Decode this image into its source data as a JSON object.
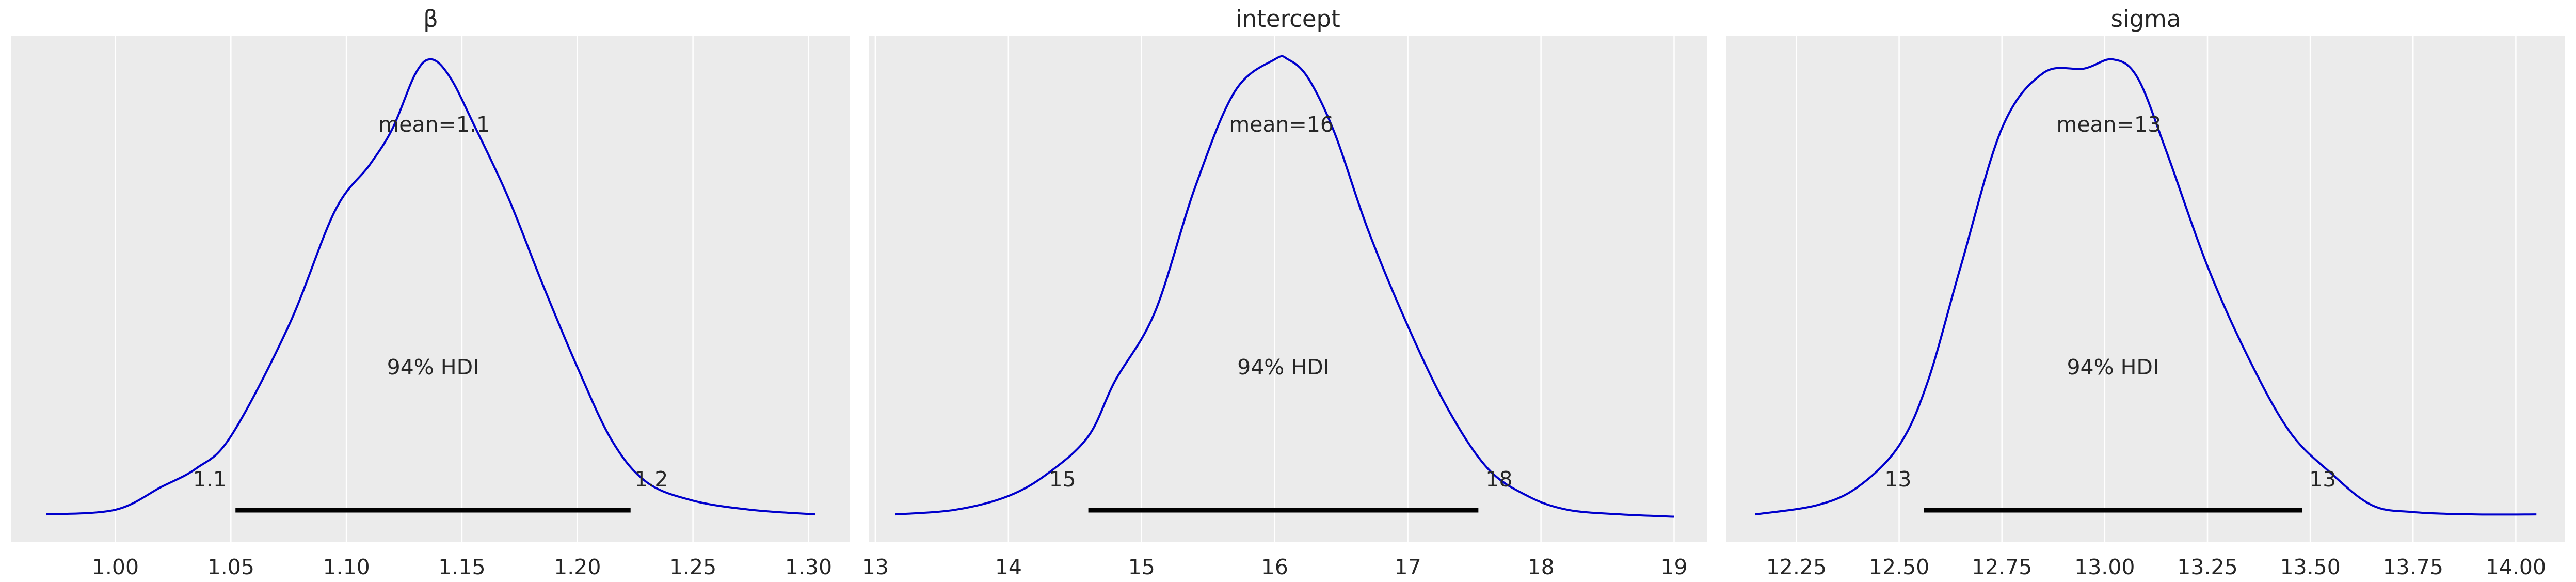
{
  "chart_data": [
    {
      "type": "area",
      "title": "β",
      "xlim": [
        0.955,
        1.318
      ],
      "xticks": [
        1.0,
        1.05,
        1.1,
        1.15,
        1.2,
        1.25,
        1.3
      ],
      "xtick_labels": [
        "1.00",
        "1.05",
        "1.10",
        "1.15",
        "1.20",
        "1.25",
        "1.30"
      ],
      "density_x": [
        0.97,
        1.0,
        1.02,
        1.035,
        1.05,
        1.075,
        1.095,
        1.11,
        1.12,
        1.13,
        1.137,
        1.145,
        1.155,
        1.17,
        1.185,
        1.2,
        1.215,
        1.23,
        1.25,
        1.275,
        1.303
      ],
      "density_y": [
        0.01,
        0.02,
        0.07,
        0.11,
        0.18,
        0.42,
        0.67,
        0.77,
        0.85,
        0.97,
        1.0,
        0.96,
        0.86,
        0.7,
        0.51,
        0.33,
        0.17,
        0.08,
        0.04,
        0.02,
        0.01
      ],
      "mean_label": "mean=1.1",
      "mean_value": 1.138,
      "hdi_label": "94% HDI",
      "hdi": [
        1.052,
        1.223
      ],
      "hdi_low_label": "1.1",
      "hdi_high_label": "1.2"
    },
    {
      "type": "area",
      "title": "intercept",
      "xlim": [
        12.95,
        19.25
      ],
      "xticks": [
        13,
        14,
        15,
        16,
        17,
        18,
        19
      ],
      "xtick_labels": [
        "13",
        "14",
        "15",
        "16",
        "17",
        "18",
        "19"
      ],
      "density_x": [
        13.15,
        13.6,
        14.0,
        14.3,
        14.6,
        14.8,
        15.1,
        15.4,
        15.7,
        16.0,
        16.1,
        16.25,
        16.45,
        16.7,
        17.0,
        17.3,
        17.6,
        17.9,
        18.2,
        18.6,
        19.0
      ],
      "density_y": [
        0.01,
        0.02,
        0.05,
        0.1,
        0.18,
        0.3,
        0.45,
        0.72,
        0.93,
        1.0,
        1.0,
        0.96,
        0.84,
        0.63,
        0.42,
        0.24,
        0.11,
        0.05,
        0.02,
        0.01,
        0.005
      ],
      "mean_label": "mean=16",
      "mean_value": 16.05,
      "hdi_label": "94% HDI",
      "hdi": [
        14.6,
        17.53
      ],
      "hdi_low_label": "15",
      "hdi_high_label": "18"
    },
    {
      "type": "area",
      "title": "sigma",
      "xlim": [
        12.08,
        14.12
      ],
      "xticks": [
        12.25,
        12.5,
        12.75,
        13.0,
        13.25,
        13.5,
        13.75,
        14.0
      ],
      "xtick_labels": [
        "12.25",
        "12.50",
        "12.75",
        "13.00",
        "13.25",
        "13.50",
        "13.75",
        "14.00"
      ],
      "density_x": [
        12.15,
        12.3,
        12.4,
        12.5,
        12.57,
        12.65,
        12.75,
        12.85,
        12.95,
        13.02,
        13.08,
        13.15,
        13.25,
        13.35,
        13.45,
        13.55,
        13.65,
        13.75,
        13.9,
        14.05
      ],
      "density_y": [
        0.01,
        0.03,
        0.07,
        0.16,
        0.3,
        0.55,
        0.85,
        0.97,
        0.98,
        1.0,
        0.96,
        0.8,
        0.55,
        0.35,
        0.19,
        0.1,
        0.03,
        0.015,
        0.01,
        0.01
      ],
      "mean_label": "mean=13",
      "mean_value": 13.01,
      "hdi_label": "94% HDI",
      "hdi": [
        12.56,
        13.48
      ],
      "hdi_low_label": "13",
      "hdi_high_label": "13"
    }
  ],
  "colors": {
    "plot_background": "#ebebeb",
    "grid": "#ffffff",
    "curve": "#0000cc",
    "hdi_bar": "#000000",
    "text": "#262626"
  }
}
